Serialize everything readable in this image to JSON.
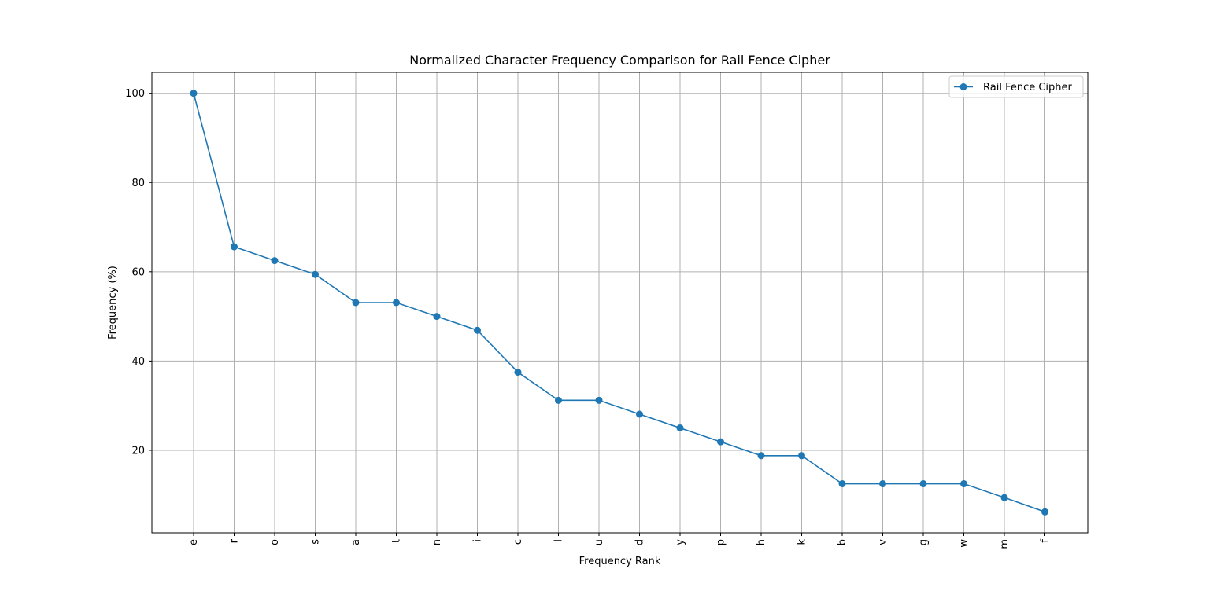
{
  "chart_data": {
    "type": "line",
    "title": "Normalized Character Frequency Comparison for Rail Fence Cipher",
    "xlabel": "Frequency Rank",
    "ylabel": "Frequency (%)",
    "categories": [
      "e",
      "r",
      "o",
      "s",
      "a",
      "t",
      "n",
      "i",
      "c",
      "l",
      "u",
      "d",
      "y",
      "p",
      "h",
      "k",
      "b",
      "v",
      "g",
      "w",
      "m",
      "f"
    ],
    "series": [
      {
        "name": "Rail Fence Cipher",
        "color": "#1f77b4",
        "marker": "circle",
        "values": [
          100,
          65.6,
          62.5,
          59.4,
          53.1,
          53.1,
          50.0,
          46.9,
          37.5,
          31.2,
          31.2,
          28.1,
          25.0,
          21.9,
          18.8,
          18.8,
          12.5,
          12.5,
          12.5,
          12.5,
          9.4,
          6.2
        ]
      }
    ],
    "yticks": [
      20,
      40,
      60,
      80,
      100
    ],
    "ylim": [
      1.5,
      104.7
    ],
    "grid": true,
    "legend_position": "top-right",
    "x_tick_rotation": "vertical"
  }
}
